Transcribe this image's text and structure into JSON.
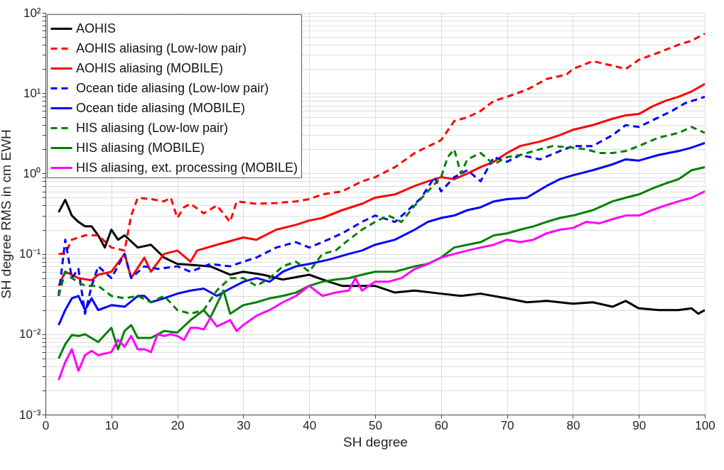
{
  "chart_data": {
    "type": "line",
    "xlabel": "SH degree",
    "ylabel": "SH degree RMS in cm EWH",
    "log": true,
    "grid": true,
    "legend": "top left",
    "xlim": [
      0,
      100
    ],
    "xticks": [
      0,
      10,
      20,
      30,
      40,
      50,
      60,
      70,
      80,
      90,
      100
    ],
    "ylim": [
      0.001,
      100
    ],
    "yticks": [
      {
        "value": 0.001,
        "label": "10⁻³"
      },
      {
        "value": 0.002,
        "label": null
      },
      {
        "value": 0.003,
        "label": null
      },
      {
        "value": 0.004,
        "label": null
      },
      {
        "value": 0.005,
        "label": null
      },
      {
        "value": 0.006,
        "label": null
      },
      {
        "value": 0.007,
        "label": null
      },
      {
        "value": 0.008,
        "label": null
      },
      {
        "value": 0.009,
        "label": null
      },
      {
        "value": 0.01,
        "label": "10⁻²"
      },
      {
        "value": 0.02,
        "label": null
      },
      {
        "value": 0.03,
        "label": null
      },
      {
        "value": 0.04,
        "label": null
      },
      {
        "value": 0.05,
        "label": null
      },
      {
        "value": 0.06,
        "label": null
      },
      {
        "value": 0.07,
        "label": null
      },
      {
        "value": 0.08,
        "label": null
      },
      {
        "value": 0.09,
        "label": null
      },
      {
        "value": 0.1,
        "label": "10⁻¹"
      },
      {
        "value": 0.2,
        "label": null
      },
      {
        "value": 0.3,
        "label": null
      },
      {
        "value": 0.4,
        "label": null
      },
      {
        "value": 0.5,
        "label": null
      },
      {
        "value": 0.6,
        "label": null
      },
      {
        "value": 0.7,
        "label": null
      },
      {
        "value": 0.8,
        "label": null
      },
      {
        "value": 0.9,
        "label": null
      },
      {
        "value": 1,
        "label": "10⁰"
      },
      {
        "value": 2,
        "label": null
      },
      {
        "value": 3,
        "label": null
      },
      {
        "value": 4,
        "label": null
      },
      {
        "value": 5,
        "label": null
      },
      {
        "value": 6,
        "label": null
      },
      {
        "value": 7,
        "label": null
      },
      {
        "value": 8,
        "label": null
      },
      {
        "value": 9,
        "label": null
      },
      {
        "value": 10,
        "label": "10¹"
      },
      {
        "value": 20,
        "label": null
      },
      {
        "value": 30,
        "label": null
      },
      {
        "value": 40,
        "label": null
      },
      {
        "value": 50,
        "label": null
      },
      {
        "value": 60,
        "label": null
      },
      {
        "value": 70,
        "label": null
      },
      {
        "value": 80,
        "label": null
      },
      {
        "value": 90,
        "label": null
      },
      {
        "value": 100,
        "label": "10²"
      }
    ],
    "series": [
      {
        "name": "AOHIS",
        "color": "#000000",
        "line_style": "solid",
        "x": [
          2,
          3,
          4,
          5,
          6,
          7,
          8,
          9,
          10,
          11,
          12,
          14,
          16,
          18,
          20,
          22,
          25,
          28,
          30,
          33,
          36,
          40,
          43,
          45,
          50,
          53,
          56,
          60,
          63,
          66,
          70,
          73,
          76,
          80,
          83,
          86,
          88,
          90,
          93,
          96,
          98,
          99,
          100
        ],
        "values": [
          0.33,
          0.47,
          0.3,
          0.25,
          0.22,
          0.22,
          0.17,
          0.12,
          0.2,
          0.15,
          0.17,
          0.12,
          0.13,
          0.09,
          0.075,
          0.073,
          0.07,
          0.055,
          0.06,
          0.055,
          0.048,
          0.055,
          0.045,
          0.04,
          0.04,
          0.033,
          0.035,
          0.032,
          0.03,
          0.032,
          0.028,
          0.025,
          0.026,
          0.024,
          0.025,
          0.022,
          0.026,
          0.021,
          0.02,
          0.02,
          0.021,
          0.018,
          0.02
        ]
      },
      {
        "name": "AOHIS aliasing (Low-low pair)",
        "color": "#ff0000",
        "line_style": "dashed",
        "x": [
          2,
          3,
          4,
          6,
          8,
          10,
          12,
          13,
          14,
          16,
          18,
          19,
          20,
          21,
          22,
          24,
          26,
          28,
          29,
          32,
          35,
          38,
          40,
          42,
          45,
          48,
          50,
          53,
          56,
          60,
          62,
          64,
          66,
          68,
          70,
          73,
          76,
          79,
          80,
          83,
          86,
          88,
          90,
          93,
          96,
          98,
          100
        ],
        "values": [
          0.1,
          0.1,
          0.15,
          0.17,
          0.17,
          0.12,
          0.11,
          0.3,
          0.5,
          0.48,
          0.45,
          0.5,
          0.28,
          0.38,
          0.42,
          0.32,
          0.4,
          0.25,
          0.45,
          0.42,
          0.43,
          0.45,
          0.48,
          0.55,
          0.6,
          0.8,
          0.9,
          1.2,
          1.8,
          2.6,
          4.5,
          5,
          6,
          8,
          9,
          11,
          15,
          17,
          20,
          25,
          22,
          20,
          26,
          32,
          40,
          45,
          55
        ]
      },
      {
        "name": "AOHIS aliasing (MOBILE)",
        "color": "#ff0000",
        "line_style": "solid",
        "x": [
          2,
          3,
          5,
          7,
          8,
          10,
          12,
          13,
          15,
          16,
          18,
          20,
          22,
          23,
          26,
          30,
          32,
          35,
          38,
          40,
          42,
          45,
          48,
          50,
          53,
          56,
          58,
          60,
          62,
          64,
          66,
          68,
          70,
          72,
          75,
          78,
          80,
          83,
          86,
          88,
          90,
          92,
          94,
          96,
          98,
          100
        ],
        "values": [
          0.04,
          0.06,
          0.05,
          0.047,
          0.055,
          0.06,
          0.1,
          0.05,
          0.09,
          0.06,
          0.1,
          0.11,
          0.08,
          0.11,
          0.13,
          0.16,
          0.15,
          0.2,
          0.23,
          0.26,
          0.28,
          0.35,
          0.42,
          0.5,
          0.55,
          0.7,
          0.8,
          0.9,
          0.85,
          1.0,
          1.2,
          1.4,
          1.8,
          2.2,
          2.5,
          3.0,
          3.5,
          4.0,
          4.8,
          5.3,
          5.5,
          6.8,
          8,
          9,
          10.5,
          13
        ]
      },
      {
        "name": "Ocean tide aliasing (Low-low pair)",
        "color": "#0000ff",
        "line_style": "dashed",
        "x": [
          2,
          3,
          4,
          5,
          6,
          7,
          8,
          10,
          12,
          13,
          15,
          17,
          20,
          22,
          25,
          28,
          30,
          32,
          35,
          38,
          40,
          42,
          45,
          48,
          50,
          53,
          55,
          57,
          59,
          60,
          62,
          64,
          66,
          68,
          70,
          72,
          75,
          78,
          80,
          83,
          86,
          88,
          90,
          93,
          95,
          97,
          100
        ],
        "values": [
          0.03,
          0.15,
          0.05,
          0.065,
          0.018,
          0.04,
          0.07,
          0.05,
          0.1,
          0.05,
          0.07,
          0.065,
          0.07,
          0.06,
          0.075,
          0.07,
          0.08,
          0.09,
          0.12,
          0.14,
          0.12,
          0.14,
          0.18,
          0.25,
          0.3,
          0.25,
          0.35,
          0.5,
          0.9,
          0.6,
          0.9,
          1.1,
          0.8,
          1.6,
          1.4,
          1.7,
          1.5,
          1.9,
          2.2,
          2.2,
          3,
          4,
          3.8,
          5,
          6,
          7.5,
          9
        ]
      },
      {
        "name": "Ocean tide aliasing (MOBILE)",
        "color": "#0000ff",
        "line_style": "solid",
        "x": [
          2,
          3,
          4,
          5,
          6,
          7,
          8,
          10,
          12,
          14,
          15,
          16,
          18,
          20,
          22,
          24,
          26,
          28,
          30,
          32,
          34,
          36,
          38,
          40,
          43,
          46,
          48,
          50,
          53,
          56,
          58,
          60,
          62,
          64,
          66,
          68,
          70,
          73,
          76,
          78,
          80,
          83,
          86,
          88,
          90,
          93,
          96,
          98,
          100
        ],
        "values": [
          0.013,
          0.02,
          0.028,
          0.03,
          0.02,
          0.028,
          0.02,
          0.023,
          0.022,
          0.03,
          0.03,
          0.025,
          0.028,
          0.032,
          0.035,
          0.037,
          0.03,
          0.037,
          0.045,
          0.05,
          0.045,
          0.06,
          0.07,
          0.075,
          0.085,
          0.1,
          0.11,
          0.13,
          0.15,
          0.2,
          0.25,
          0.28,
          0.3,
          0.35,
          0.38,
          0.45,
          0.48,
          0.5,
          0.7,
          0.85,
          0.95,
          1.1,
          1.3,
          1.5,
          1.45,
          1.7,
          1.9,
          2.1,
          2.4
        ]
      },
      {
        "name": "HIS aliasing (Low-low pair)",
        "color": "#008000",
        "line_style": "dashed",
        "x": [
          2,
          3,
          4,
          6,
          8,
          10,
          12,
          14,
          16,
          18,
          20,
          22,
          24,
          26,
          28,
          30,
          32,
          34,
          36,
          38,
          40,
          42,
          44,
          46,
          48,
          50,
          52,
          54,
          56,
          58,
          60,
          61,
          62,
          63,
          64,
          66,
          68,
          70,
          72,
          75,
          77,
          80,
          82,
          84,
          86,
          88,
          90,
          93,
          96,
          98,
          100
        ],
        "values": [
          0.03,
          0.06,
          0.05,
          0.04,
          0.04,
          0.03,
          0.028,
          0.03,
          0.025,
          0.03,
          0.02,
          0.018,
          0.02,
          0.035,
          0.05,
          0.05,
          0.04,
          0.05,
          0.07,
          0.08,
          0.06,
          0.1,
          0.11,
          0.15,
          0.2,
          0.25,
          0.3,
          0.25,
          0.4,
          0.6,
          0.9,
          1.6,
          2.0,
          1.0,
          1.5,
          1.8,
          1.3,
          1.6,
          1.7,
          2.0,
          2.2,
          2.1,
          2.0,
          1.8,
          1.8,
          1.9,
          2.2,
          2.8,
          3.2,
          3.8,
          3.2
        ]
      },
      {
        "name": "HIS aliasing (MOBILE)",
        "color": "#008000",
        "line_style": "solid",
        "x": [
          2,
          3,
          4,
          5,
          6,
          8,
          10,
          11,
          12,
          13,
          14,
          16,
          18,
          20,
          22,
          24,
          25,
          27,
          28,
          30,
          32,
          34,
          36,
          38,
          40,
          42,
          44,
          46,
          48,
          50,
          53,
          56,
          58,
          60,
          62,
          64,
          66,
          68,
          70,
          72,
          74,
          76,
          78,
          80,
          83,
          86,
          88,
          90,
          92,
          94,
          96,
          98,
          100
        ],
        "values": [
          0.005,
          0.0075,
          0.0098,
          0.0095,
          0.01,
          0.008,
          0.012,
          0.0065,
          0.011,
          0.013,
          0.009,
          0.009,
          0.011,
          0.0105,
          0.015,
          0.02,
          0.016,
          0.035,
          0.018,
          0.023,
          0.025,
          0.028,
          0.03,
          0.033,
          0.04,
          0.045,
          0.048,
          0.05,
          0.055,
          0.06,
          0.06,
          0.07,
          0.075,
          0.09,
          0.12,
          0.13,
          0.14,
          0.17,
          0.18,
          0.2,
          0.22,
          0.25,
          0.28,
          0.3,
          0.35,
          0.45,
          0.5,
          0.55,
          0.65,
          0.75,
          0.85,
          1.1,
          1.2
        ]
      },
      {
        "name": "HIS aliasing, ext. processing (MOBILE)",
        "color": "#ff00ff",
        "line_style": "solid",
        "x": [
          2,
          3,
          4,
          5,
          6,
          7,
          8,
          10,
          11,
          12,
          13,
          14,
          15,
          16,
          17,
          18,
          19,
          20,
          21,
          22,
          23,
          24,
          25,
          26,
          28,
          29,
          30,
          32,
          34,
          36,
          38,
          40,
          42,
          44,
          46,
          47,
          48,
          50,
          52,
          54,
          56,
          58,
          60,
          62,
          64,
          66,
          68,
          70,
          72,
          74,
          76,
          78,
          80,
          82,
          84,
          86,
          88,
          90,
          92,
          94,
          96,
          98,
          100
        ],
        "values": [
          0.0027,
          0.0045,
          0.0065,
          0.0035,
          0.0055,
          0.0062,
          0.0055,
          0.006,
          0.0085,
          0.007,
          0.0095,
          0.0065,
          0.0065,
          0.006,
          0.01,
          0.0095,
          0.01,
          0.0095,
          0.0085,
          0.012,
          0.012,
          0.0115,
          0.016,
          0.0125,
          0.015,
          0.011,
          0.013,
          0.017,
          0.02,
          0.025,
          0.03,
          0.04,
          0.03,
          0.033,
          0.035,
          0.05,
          0.035,
          0.045,
          0.045,
          0.05,
          0.065,
          0.075,
          0.09,
          0.1,
          0.11,
          0.12,
          0.13,
          0.15,
          0.14,
          0.15,
          0.18,
          0.2,
          0.21,
          0.25,
          0.24,
          0.27,
          0.3,
          0.3,
          0.35,
          0.4,
          0.45,
          0.5,
          0.6
        ]
      }
    ]
  }
}
